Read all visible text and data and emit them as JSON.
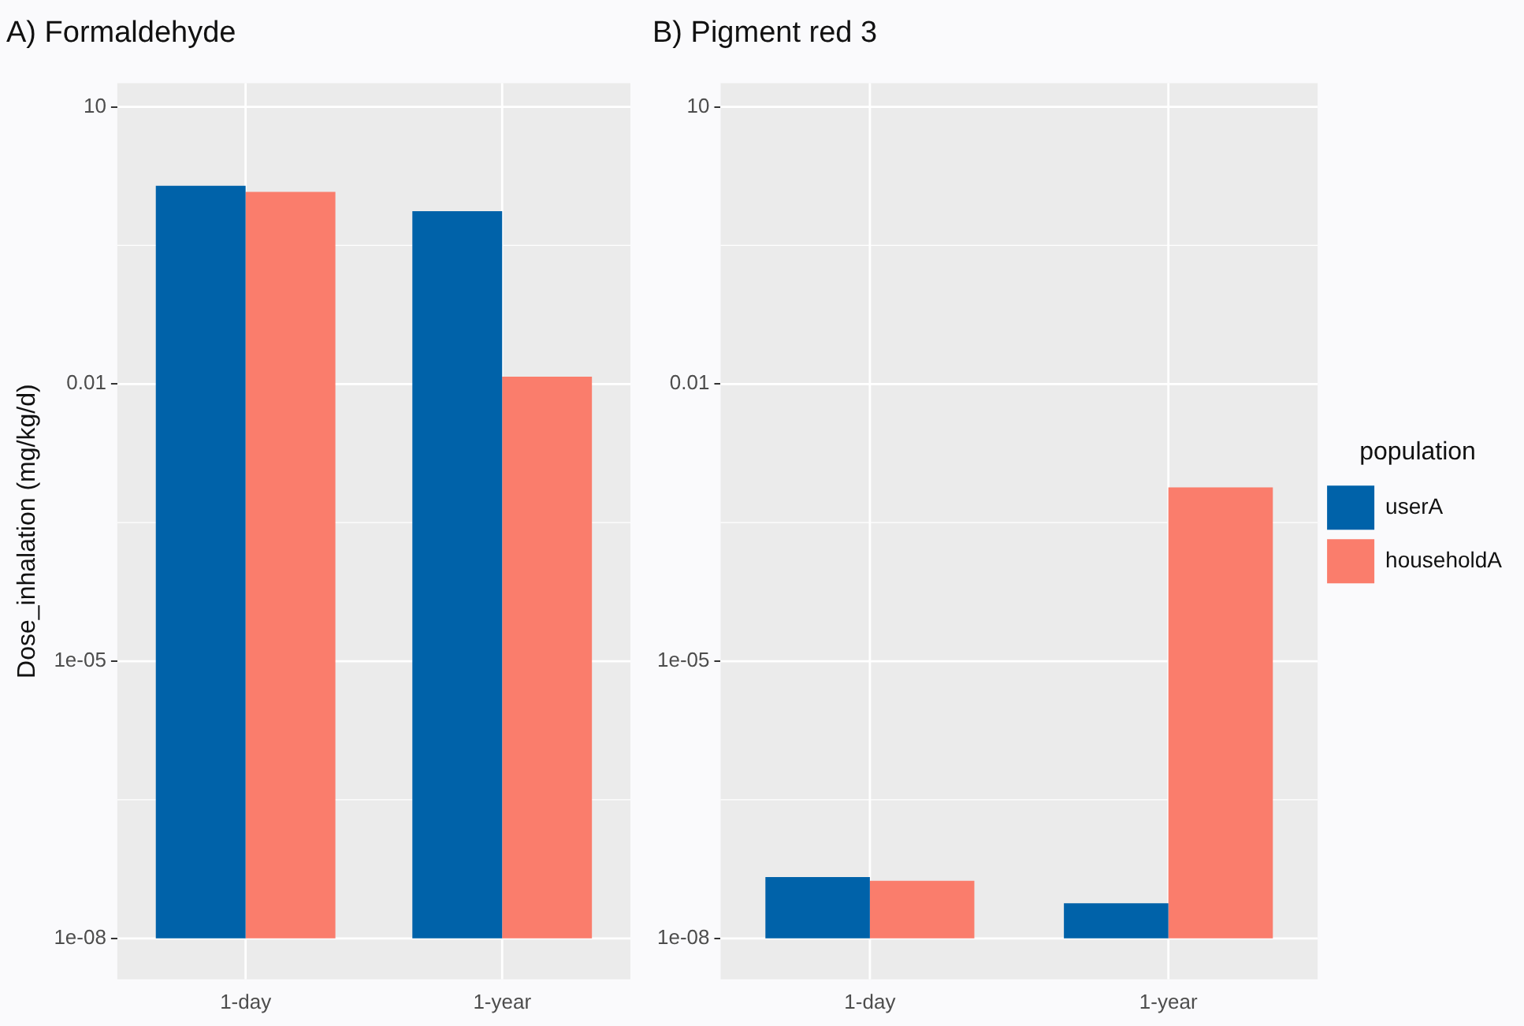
{
  "chart_data": [
    {
      "type": "bar",
      "title": "A) Formaldehyde",
      "ylabel": "Dose_inhalation (mg/kg/d)",
      "categories": [
        "1-day",
        "1-year"
      ],
      "log": "y",
      "ylim": [
        3.6e-09,
        18
      ],
      "yticks": [
        {
          "value": 1e-08,
          "label": "1e-08"
        },
        {
          "value": 1e-05,
          "label": "1e-05"
        },
        {
          "value": 0.01,
          "label": "0.01"
        },
        {
          "value": 10,
          "label": "10"
        }
      ],
      "grid": true,
      "legend": false,
      "series": [
        {
          "color": "#0062a9",
          "values": [
            1.4,
            0.74
          ],
          "base": [
            1e-08,
            1e-08
          ]
        },
        {
          "color": "#fa7d6c",
          "values": [
            1.2,
            0.012
          ],
          "base": [
            1e-08,
            1e-08
          ]
        }
      ]
    },
    {
      "type": "bar",
      "title": "B) Pigment red 3",
      "legend_title": "population",
      "categories": [
        "1-day",
        "1-year"
      ],
      "log": "y",
      "ylim": [
        3.6e-09,
        18
      ],
      "yticks": [
        {
          "value": 1e-08,
          "label": "1e-08"
        },
        {
          "value": 1e-05,
          "label": "1e-05"
        },
        {
          "value": 0.01,
          "label": "0.01"
        },
        {
          "value": 10,
          "label": "10"
        }
      ],
      "grid": true,
      "legend": "right",
      "series": [
        {
          "name": "userA",
          "color": "#0062a9",
          "values": [
            3.6e-08,
            1.4e-08
          ],
          "base": [
            1e-08,
            1e-08
          ]
        },
        {
          "name": "householdA",
          "color": "#fa7d6c",
          "values": [
            3.2e-08,
            0.00076
          ],
          "base": [
            1e-08,
            1e-08
          ]
        }
      ]
    }
  ]
}
